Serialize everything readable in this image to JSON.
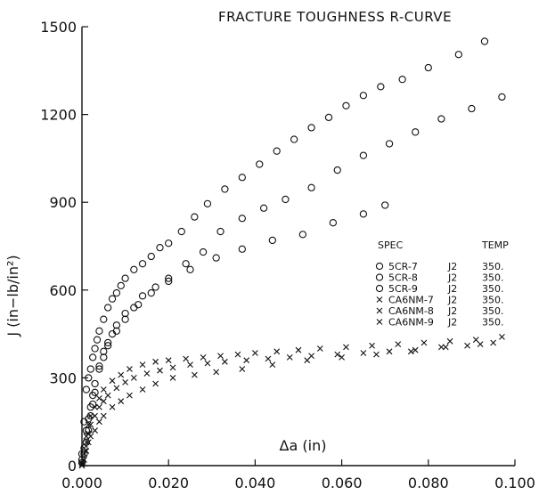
{
  "chart_data": {
    "type": "scatter",
    "title": "FRACTURE TOUGHNESS R-CURVE",
    "xlabel": "Δa  (in)",
    "ylabel": "J  (in−lb/in²)",
    "xlim": [
      0,
      0.1
    ],
    "ylim": [
      0,
      1500
    ],
    "x_ticks": [
      "0.000",
      "0.020",
      "0.040",
      "0.060",
      "0.080",
      "0.100"
    ],
    "y_ticks": [
      "0",
      "300",
      "600",
      "900",
      "1200",
      "1500"
    ],
    "grid": false,
    "legend": {
      "placement": "right",
      "headers": [
        "SPEC",
        "TEMP"
      ],
      "entries": [
        {
          "marker": "circle",
          "spec": "5CR-7",
          "j": "J2",
          "temp": "350."
        },
        {
          "marker": "circle",
          "spec": "5CR-8",
          "j": "J2",
          "temp": "350."
        },
        {
          "marker": "circle",
          "spec": "5CR-9",
          "j": "J2",
          "temp": "350."
        },
        {
          "marker": "x",
          "spec": "CA6NM-7",
          "j": "J2",
          "temp": "350."
        },
        {
          "marker": "x",
          "spec": "CA6NM-8",
          "j": "J2",
          "temp": "350."
        },
        {
          "marker": "x",
          "spec": "CA6NM-9",
          "j": "J2",
          "temp": "350."
        }
      ]
    },
    "series": [
      {
        "marker": "circle",
        "x": [
          0.0,
          0.0005,
          0.001,
          0.0015,
          0.002,
          0.0025,
          0.003,
          0.0035,
          0.004,
          0.005,
          0.006,
          0.007,
          0.008,
          0.009,
          0.01,
          0.012,
          0.014,
          0.016,
          0.018,
          0.02,
          0.023,
          0.026,
          0.029,
          0.033,
          0.037,
          0.041,
          0.045,
          0.049,
          0.053,
          0.057,
          0.061,
          0.065,
          0.069,
          0.074,
          0.08,
          0.087,
          0.093
        ],
        "y": [
          40,
          150,
          260,
          300,
          330,
          370,
          400,
          430,
          460,
          500,
          540,
          570,
          590,
          615,
          640,
          670,
          690,
          715,
          745,
          760,
          800,
          850,
          895,
          945,
          985,
          1030,
          1075,
          1115,
          1155,
          1190,
          1230,
          1265,
          1295,
          1320,
          1360,
          1405,
          1450
        ]
      },
      {
        "marker": "circle",
        "x": [
          0.0,
          0.0005,
          0.001,
          0.0015,
          0.002,
          0.0025,
          0.003,
          0.004,
          0.005,
          0.006,
          0.007,
          0.008,
          0.01,
          0.012,
          0.014,
          0.017,
          0.02,
          0.024,
          0.028,
          0.032,
          0.037,
          0.042,
          0.047,
          0.053,
          0.059,
          0.065,
          0.071,
          0.077,
          0.083,
          0.09,
          0.097
        ],
        "y": [
          20,
          60,
          120,
          160,
          200,
          240,
          280,
          340,
          390,
          420,
          450,
          480,
          520,
          540,
          580,
          610,
          640,
          690,
          730,
          800,
          845,
          880,
          910,
          950,
          1010,
          1060,
          1100,
          1140,
          1185,
          1220,
          1260
        ]
      },
      {
        "marker": "circle",
        "x": [
          0.0,
          0.0005,
          0.001,
          0.0015,
          0.002,
          0.0025,
          0.003,
          0.004,
          0.005,
          0.006,
          0.008,
          0.01,
          0.013,
          0.016,
          0.02,
          0.025,
          0.031,
          0.037,
          0.044,
          0.051,
          0.058,
          0.065,
          0.07
        ],
        "y": [
          10,
          40,
          80,
          120,
          170,
          210,
          250,
          330,
          370,
          410,
          460,
          500,
          550,
          590,
          630,
          670,
          710,
          740,
          770,
          790,
          830,
          860,
          890
        ]
      },
      {
        "marker": "x",
        "x": [
          0.0,
          0.0005,
          0.001,
          0.0015,
          0.002,
          0.003,
          0.004,
          0.005,
          0.007,
          0.009,
          0.011,
          0.014,
          0.017,
          0.02,
          0.024,
          0.028,
          0.032,
          0.036,
          0.04,
          0.045,
          0.05,
          0.055,
          0.061,
          0.067,
          0.073,
          0.079,
          0.085,
          0.091,
          0.097
        ],
        "y": [
          10,
          60,
          100,
          140,
          170,
          200,
          230,
          260,
          290,
          310,
          330,
          345,
          355,
          360,
          365,
          370,
          375,
          380,
          385,
          390,
          395,
          400,
          405,
          410,
          415,
          420,
          425,
          430,
          440
        ]
      },
      {
        "marker": "x",
        "x": [
          0.0,
          0.0005,
          0.001,
          0.0015,
          0.002,
          0.003,
          0.004,
          0.005,
          0.006,
          0.008,
          0.01,
          0.012,
          0.015,
          0.018,
          0.021,
          0.025,
          0.029,
          0.033,
          0.038,
          0.043,
          0.048,
          0.053,
          0.059,
          0.065,
          0.071,
          0.077,
          0.083,
          0.089,
          0.095
        ],
        "y": [
          5,
          40,
          80,
          110,
          140,
          170,
          200,
          220,
          240,
          265,
          285,
          300,
          315,
          325,
          335,
          345,
          350,
          355,
          360,
          365,
          370,
          375,
          380,
          385,
          390,
          395,
          405,
          410,
          420
        ]
      },
      {
        "marker": "x",
        "x": [
          0.0,
          0.0005,
          0.001,
          0.0015,
          0.002,
          0.003,
          0.004,
          0.005,
          0.007,
          0.009,
          0.011,
          0.014,
          0.017,
          0.021,
          0.026,
          0.031,
          0.037,
          0.044,
          0.052,
          0.06,
          0.068,
          0.076,
          0.084,
          0.092
        ],
        "y": [
          0,
          20,
          50,
          80,
          100,
          120,
          150,
          170,
          200,
          220,
          240,
          260,
          280,
          300,
          310,
          320,
          330,
          345,
          360,
          370,
          380,
          390,
          405,
          415
        ]
      }
    ]
  }
}
